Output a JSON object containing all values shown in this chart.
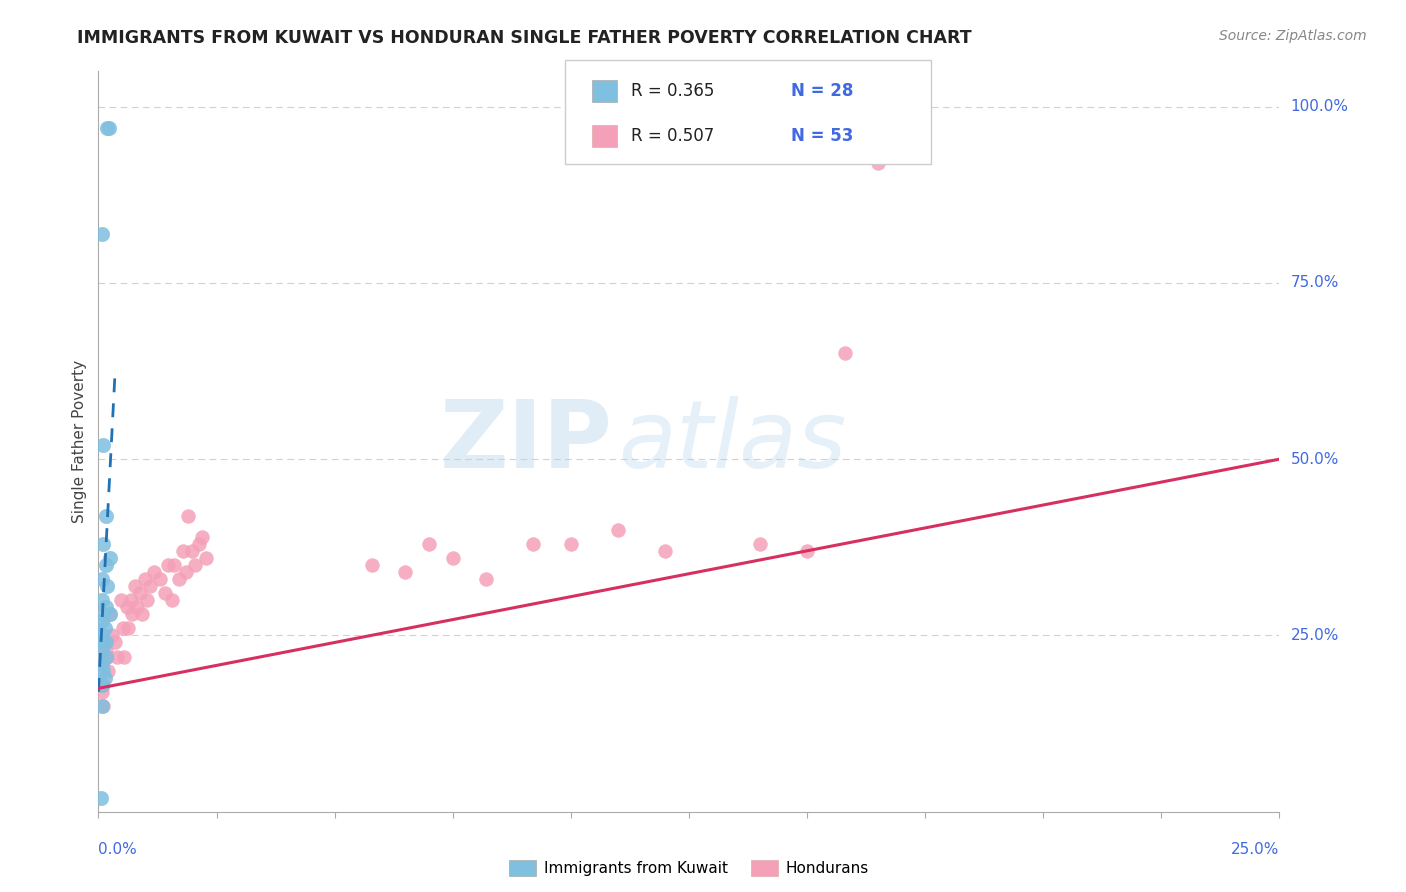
{
  "title": "IMMIGRANTS FROM KUWAIT VS HONDURAN SINGLE FATHER POVERTY CORRELATION CHART",
  "source": "Source: ZipAtlas.com",
  "ylabel": "Single Father Poverty",
  "xlim": [
    0.0,
    0.25
  ],
  "ylim": [
    0.0,
    1.05
  ],
  "legend_r1": "R = 0.365",
  "legend_n1": "N = 28",
  "legend_r2": "R = 0.507",
  "legend_n2": "N = 53",
  "blue_color": "#7fbfdf",
  "pink_color": "#f4a0b8",
  "blue_line_color": "#2171b5",
  "pink_line_color": "#d63060",
  "kuwait_x": [
    0.0018,
    0.0022,
    0.0008,
    0.001,
    0.0015,
    0.0009,
    0.0025,
    0.0015,
    0.0008,
    0.0018,
    0.0007,
    0.0016,
    0.0009,
    0.0024,
    0.0007,
    0.0014,
    0.0008,
    0.0009,
    0.0007,
    0.0016,
    0.0008,
    0.0015,
    0.0007,
    0.0009,
    0.0014,
    0.0008,
    0.0007,
    0.0006
  ],
  "kuwait_y": [
    0.97,
    0.97,
    0.82,
    0.52,
    0.42,
    0.38,
    0.36,
    0.35,
    0.33,
    0.32,
    0.3,
    0.29,
    0.28,
    0.28,
    0.27,
    0.26,
    0.25,
    0.24,
    0.24,
    0.24,
    0.23,
    0.22,
    0.21,
    0.2,
    0.19,
    0.18,
    0.15,
    0.02
  ],
  "honduran_x": [
    0.0008,
    0.0009,
    0.0007,
    0.001,
    0.0015,
    0.0018,
    0.002,
    0.0025,
    0.0028,
    0.0035,
    0.004,
    0.0048,
    0.0052,
    0.0055,
    0.006,
    0.0063,
    0.0068,
    0.0072,
    0.0078,
    0.0082,
    0.0088,
    0.0092,
    0.0098,
    0.0102,
    0.011,
    0.0118,
    0.013,
    0.014,
    0.0148,
    0.0155,
    0.016,
    0.017,
    0.0178,
    0.0185,
    0.019,
    0.0198,
    0.0205,
    0.0212,
    0.022,
    0.0228,
    0.058,
    0.065,
    0.07,
    0.075,
    0.082,
    0.092,
    0.1,
    0.11,
    0.12,
    0.14,
    0.15,
    0.158,
    0.165
  ],
  "honduran_y": [
    0.22,
    0.18,
    0.17,
    0.15,
    0.23,
    0.22,
    0.2,
    0.28,
    0.25,
    0.24,
    0.22,
    0.3,
    0.26,
    0.22,
    0.29,
    0.26,
    0.3,
    0.28,
    0.32,
    0.29,
    0.31,
    0.28,
    0.33,
    0.3,
    0.32,
    0.34,
    0.33,
    0.31,
    0.35,
    0.3,
    0.35,
    0.33,
    0.37,
    0.34,
    0.42,
    0.37,
    0.35,
    0.38,
    0.39,
    0.36,
    0.35,
    0.34,
    0.38,
    0.36,
    0.33,
    0.38,
    0.38,
    0.4,
    0.37,
    0.38,
    0.37,
    0.65,
    0.92
  ],
  "watermark_zip": "ZIP",
  "watermark_atlas": "atlas",
  "background_color": "#ffffff",
  "grid_color": "#cccccc",
  "ytick_positions": [
    0.0,
    0.25,
    0.5,
    0.75,
    1.0
  ],
  "ytick_labels": [
    "",
    "25.0%",
    "50.0%",
    "75.0%",
    "100.0%"
  ],
  "xtick_label_color": "#4169E1",
  "ytick_label_color": "#4169E1"
}
